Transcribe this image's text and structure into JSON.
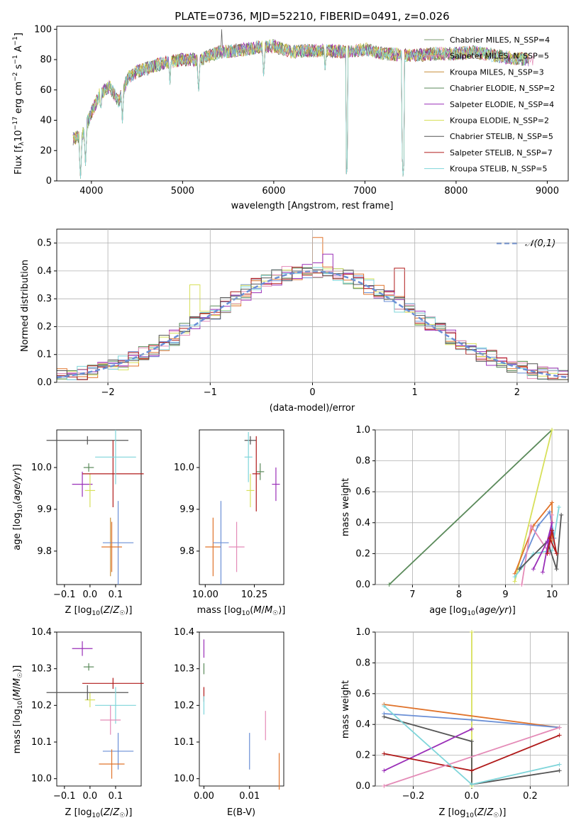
{
  "figure_title": "PLATE=0736, MJD=52210, FIBERID=0491, z=0.026",
  "colors": [
    "#7a9a6e",
    "#e48bb7",
    "#c8913e",
    "#5a8a5a",
    "#9a2fb8",
    "#d7e05a",
    "#555555",
    "#b01a1a",
    "#7fd5da"
  ],
  "models": [
    "Chabrier MILES",
    "Salpeter MILES",
    "Kroupa MILES",
    "Chabrier ELODIE",
    "Salpeter ELODIE",
    "Kroupa ELODIE",
    "Chabrier STELIB",
    "Salpeter STELIB",
    "Kroupa STELIB"
  ],
  "chart_data": [
    {
      "type": "line",
      "panel": "spectrum",
      "title": "PLATE=0736, MJD=52210, FIBERID=0491, z=0.026",
      "xlabel": "wavelength [Angstrom, rest frame]",
      "ylabel": "Flux [f_λ 10^-17 erg cm^-2 s^-1 A^-1]",
      "xlim": [
        3620,
        9230
      ],
      "ylim": [
        0,
        102
      ],
      "xticks": [
        "4000",
        "5000",
        "6000",
        "7000",
        "8000",
        "9000"
      ],
      "yticks": [
        "0",
        "20",
        "40",
        "60",
        "80",
        "100"
      ],
      "legend": [
        "Chabrier MILES, N_SSP=4",
        "Salpeter MILES, N_SSP=5",
        "Kroupa MILES, N_SSP=3",
        "Chabrier ELODIE, N_SSP=2",
        "Salpeter ELODIE, N_SSP=4",
        "Kroupa ELODIE, N_SSP=2",
        "Chabrier STELIB, N_SSP=5",
        "Salpeter STELIB, N_SSP=7",
        "Kroupa STELIB, N_SSP=5"
      ],
      "legend_placement": "top-right",
      "spectrum": {
        "x": [
          3800,
          3900,
          4000,
          4100,
          4200,
          4300,
          4400,
          4500,
          4600,
          4800,
          5000,
          5200,
          5400,
          5600,
          5800,
          6000,
          6200,
          6400,
          6600,
          6800,
          7000,
          7200,
          7400,
          7600,
          7800,
          8000,
          8200,
          8400,
          8600,
          8800
        ],
        "y": [
          28,
          30,
          45,
          58,
          62,
          52,
          68,
          72,
          74,
          78,
          80,
          80,
          85,
          86,
          88,
          89,
          85,
          86,
          86,
          85,
          87,
          84,
          83,
          83,
          84,
          84,
          85,
          83,
          81,
          80
        ]
      },
      "dips": [
        {
          "x": 3880,
          "y": 0
        },
        {
          "x": 3935,
          "y": 10
        },
        {
          "x": 4102,
          "y": 42
        },
        {
          "x": 4340,
          "y": 38
        },
        {
          "x": 4861,
          "y": 62
        },
        {
          "x": 5175,
          "y": 56
        },
        {
          "x": 5890,
          "y": 66
        },
        {
          "x": 6565,
          "y": 70
        },
        {
          "x": 6800,
          "y": 0
        },
        {
          "x": 7420,
          "y": 0
        }
      ],
      "spike": {
        "x": 5430,
        "y": 100
      }
    },
    {
      "type": "bar",
      "panel": "residual-histogram",
      "xlabel": "(data-model)/error",
      "ylabel": "Normed distribution",
      "xlim": [
        -2.5,
        2.5
      ],
      "ylim": [
        0,
        0.55
      ],
      "xticks": [
        "−2",
        "−1",
        "0",
        "1",
        "2"
      ],
      "yticks": [
        "0.0",
        "0.1",
        "0.2",
        "0.3",
        "0.4",
        "0.5"
      ],
      "grid": true,
      "bin_edges_start": -2.5,
      "bin_width": 0.1,
      "reference_curve_label": "𝒩(0,1)",
      "legend_placement": "top-right"
    },
    {
      "type": "scatter",
      "panel": "age-vs-Z",
      "xlabel": "Z [log10(Z/Z☉)]",
      "ylabel": "age [log10(age/yr)]",
      "xlim": [
        -0.13,
        0.2
      ],
      "ylim": [
        9.72,
        10.09
      ],
      "xticks": [
        "−0.1",
        "0.0",
        "0.1"
      ],
      "yticks": [
        "9.8",
        "9.9",
        "10.0"
      ],
      "points": [
        {
          "model": "Chabrier MILES",
          "x": 0.09,
          "y": 9.81,
          "xerr": 0.04,
          "yerr": 0.06
        },
        {
          "model": "Salpeter MILES",
          "x": 0.1,
          "y": 9.81,
          "xerr": 0.07,
          "yerr": 0.07
        },
        {
          "model": "Kroupa MILES",
          "x": 0.09,
          "y": 9.81,
          "xerr": 0.05,
          "yerr": 0.06
        },
        {
          "model": "Chabrier ELODIE",
          "x": -0.01,
          "y": 10.0,
          "xerr": 0.02,
          "yerr": 0.01
        },
        {
          "model": "Salpeter ELODIE",
          "x": -0.03,
          "y": 9.96,
          "xerr": 0.04,
          "yerr": 0.03
        },
        {
          "model": "Kroupa ELODIE",
          "x": 0.0,
          "y": 9.95,
          "xerr": 0.02,
          "yerr": 0.04
        },
        {
          "model": "Chabrier STELIB",
          "x": -0.01,
          "y": 10.07,
          "xerr": 0.16,
          "yerr": 0.02
        },
        {
          "model": "Salpeter STELIB",
          "x": 0.09,
          "y": 9.99,
          "xerr": 0.12,
          "yerr": 0.08
        },
        {
          "model": "Kroupa STELIB",
          "x": 0.1,
          "y": 10.02,
          "xerr": 0.08,
          "yerr": 0.07
        },
        {
          "model": "Salpeter MILES (blue)",
          "x": 0.12,
          "y": 9.82,
          "xerr": 0.05,
          "yerr": 0.09
        }
      ]
    },
    {
      "type": "scatter",
      "panel": "age-vs-mass",
      "xlabel": "mass [log10(M/M☉)]",
      "ylabel": "",
      "xlim": [
        9.97,
        10.4
      ],
      "ylim": [
        9.72,
        10.09
      ],
      "xticks": [
        "10.00",
        "10.25"
      ],
      "yticks": [
        "9.8",
        "9.9",
        "10.0"
      ]
    },
    {
      "type": "line",
      "panel": "massweight-vs-age",
      "xlabel": "age [log10(age/yr)]",
      "ylabel": "mass weight",
      "xlim": [
        6.2,
        10.35
      ],
      "ylim": [
        0,
        1.0
      ],
      "xticks": [
        "7",
        "8",
        "9",
        "10"
      ],
      "yticks": [
        "0.0",
        "0.2",
        "0.4",
        "0.6",
        "0.8",
        "1.0"
      ],
      "grid": true
    },
    {
      "type": "scatter",
      "panel": "mass-vs-Z",
      "xlabel": "Z [log10(Z/Z☉)]",
      "ylabel": "mass [log10(M/M☉)]",
      "xlim": [
        -0.13,
        0.2
      ],
      "ylim": [
        9.98,
        10.4
      ],
      "xticks": [
        "−0.1",
        "0.0",
        "0.1"
      ],
      "yticks": [
        "10.0",
        "10.1",
        "10.2",
        "10.3",
        "10.4"
      ]
    },
    {
      "type": "scatter",
      "panel": "mass-vs-EBV",
      "xlabel": "E(B-V)",
      "ylabel": "",
      "xlim": [
        -0.001,
        0.0175
      ],
      "ylim": [
        9.98,
        10.4
      ],
      "xticks": [
        "0.00",
        "0.01"
      ],
      "yticks": [
        "10.0",
        "10.1",
        "10.2",
        "10.3",
        "10.4"
      ]
    },
    {
      "type": "line",
      "panel": "massweight-vs-Z",
      "xlabel": "Z [log10(Z/Z☉)]",
      "ylabel": "mass weight",
      "xlim": [
        -0.33,
        0.33
      ],
      "ylim": [
        0,
        1.0
      ],
      "xticks": [
        "−0.2",
        "0.0",
        "0.2"
      ],
      "yticks": [
        "0.0",
        "0.2",
        "0.4",
        "0.6",
        "0.8",
        "1.0"
      ],
      "grid": true
    }
  ]
}
